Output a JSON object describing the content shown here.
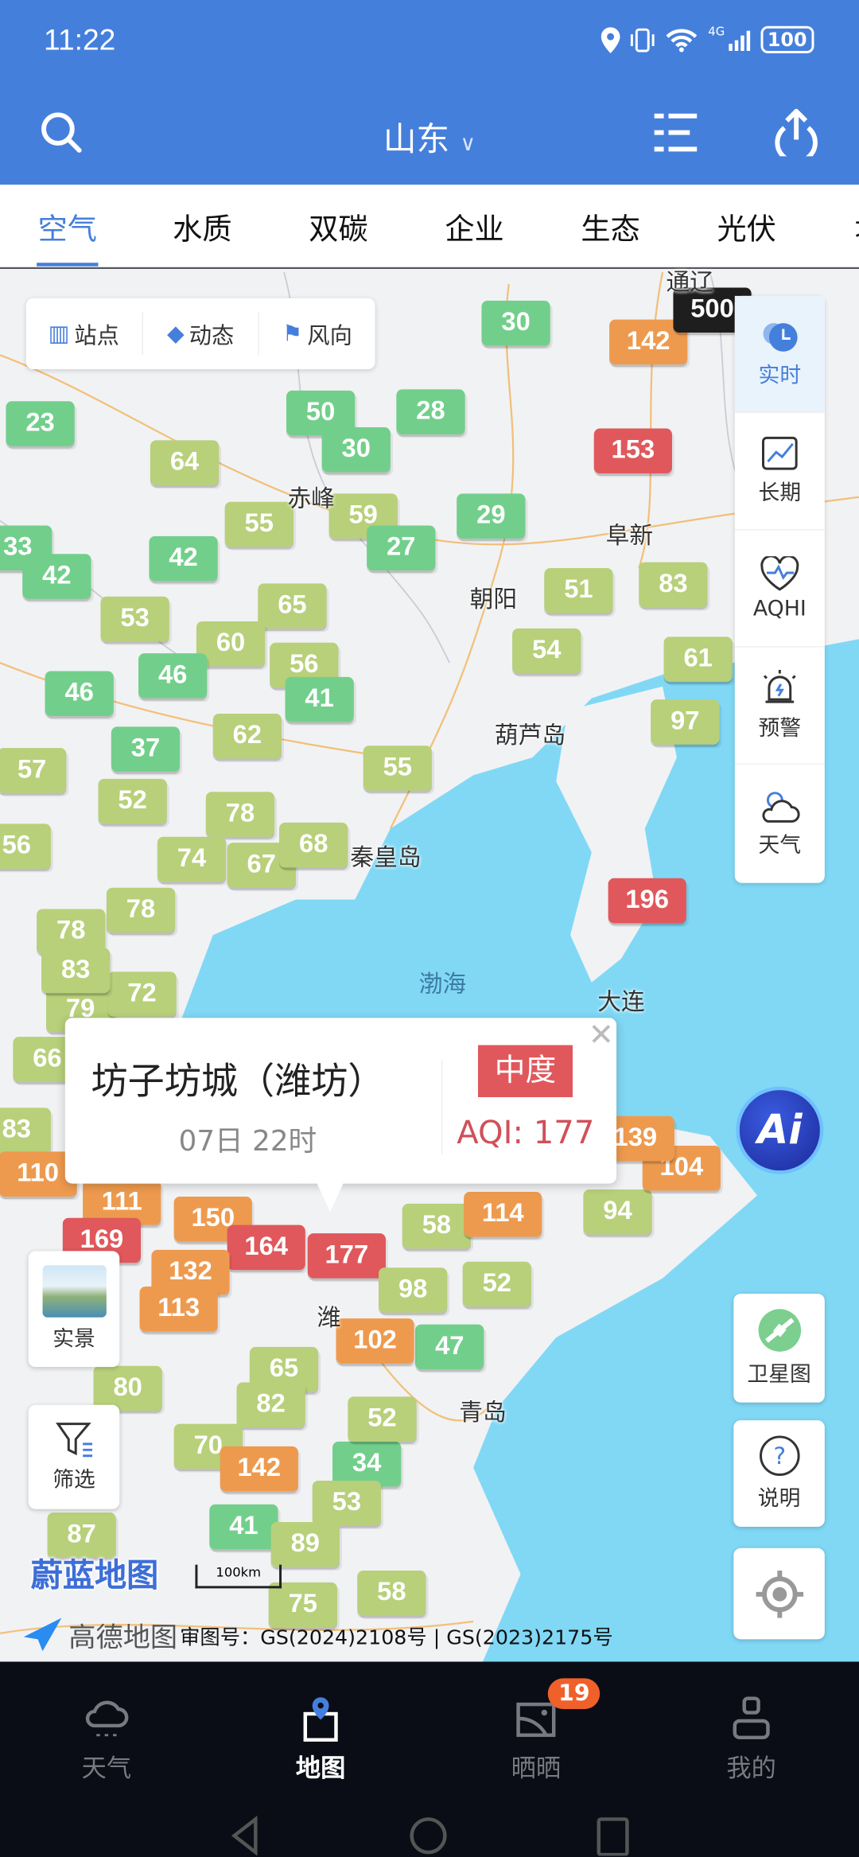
{
  "status_bar": {
    "time": "11:22",
    "battery": "100",
    "network": "4G"
  },
  "header": {
    "title": "山东",
    "search_icon": "search-icon",
    "list_icon": "list-icon",
    "share_icon": "share-icon"
  },
  "tabs": [
    "空气",
    "水质",
    "双碳",
    "企业",
    "生态",
    "光伏",
    "地"
  ],
  "active_tab": "空气",
  "map_toolbar": {
    "station": "站点",
    "dynamic": "动态",
    "wind": "风向"
  },
  "right_panel": [
    "实时",
    "长期",
    "AQHI",
    "预警",
    "天气"
  ],
  "buttons": {
    "realview": "实景",
    "filter": "筛选",
    "satellite": "卫星图",
    "explain": "说明",
    "ai": "Ai"
  },
  "popup": {
    "station": "坊子坊城（潍坊）",
    "time": "07日 22时",
    "level": "中度",
    "aqi": "AQI: 177"
  },
  "cities": [
    "通辽",
    "赤峰",
    "阜新",
    "朝阳",
    "葫芦岛",
    "秦皇岛",
    "渤海",
    "大连",
    "潍",
    "青岛"
  ],
  "map_logo": "蔚蓝地图",
  "scale": "100km",
  "attribution": {
    "provider": "高德地图",
    "license": "审图号：GS(2024)2108号 | GS(2023)2175号"
  },
  "colors": {
    "good": "#72cf8b",
    "moderate": "#b8d07a",
    "light": "#ee9a4e",
    "medium": "#e0585c",
    "severe": "#1e1e1e",
    "accent": "#457fdc"
  },
  "markers": [
    {
      "v": "30",
      "l": "good"
    },
    {
      "v": "142",
      "l": "light"
    },
    {
      "v": "500",
      "l": "severe"
    },
    {
      "v": "23",
      "l": "good"
    },
    {
      "v": "50",
      "l": "good"
    },
    {
      "v": "28",
      "l": "good"
    },
    {
      "v": "30",
      "l": "good"
    },
    {
      "v": "153",
      "l": "medium"
    },
    {
      "v": "64",
      "l": "moderate"
    },
    {
      "v": "55",
      "l": "moderate"
    },
    {
      "v": "59",
      "l": "moderate"
    },
    {
      "v": "29",
      "l": "good"
    },
    {
      "v": "42",
      "l": "good"
    },
    {
      "v": "27",
      "l": "good"
    },
    {
      "v": "33",
      "l": "good"
    },
    {
      "v": "42",
      "l": "good"
    },
    {
      "v": "51",
      "l": "moderate"
    },
    {
      "v": "83",
      "l": "moderate"
    },
    {
      "v": "53",
      "l": "moderate"
    },
    {
      "v": "65",
      "l": "moderate"
    },
    {
      "v": "60",
      "l": "moderate"
    },
    {
      "v": "56",
      "l": "moderate"
    },
    {
      "v": "54",
      "l": "moderate"
    },
    {
      "v": "61",
      "l": "moderate"
    },
    {
      "v": "46",
      "l": "good"
    },
    {
      "v": "46",
      "l": "good"
    },
    {
      "v": "41",
      "l": "good"
    },
    {
      "v": "37",
      "l": "good"
    },
    {
      "v": "62",
      "l": "moderate"
    },
    {
      "v": "97",
      "l": "moderate"
    },
    {
      "v": "57",
      "l": "moderate"
    },
    {
      "v": "55",
      "l": "moderate"
    },
    {
      "v": "52",
      "l": "moderate"
    },
    {
      "v": "78",
      "l": "moderate"
    },
    {
      "v": "56",
      "l": "moderate"
    },
    {
      "v": "74",
      "l": "moderate"
    },
    {
      "v": "67",
      "l": "moderate"
    },
    {
      "v": "68",
      "l": "moderate"
    },
    {
      "v": "78",
      "l": "moderate"
    },
    {
      "v": "78",
      "l": "moderate"
    },
    {
      "v": "83",
      "l": "moderate"
    },
    {
      "v": "196",
      "l": "medium"
    },
    {
      "v": "110",
      "l": "light"
    },
    {
      "v": "111",
      "l": "light"
    },
    {
      "v": "150",
      "l": "light"
    },
    {
      "v": "169",
      "l": "medium"
    },
    {
      "v": "164",
      "l": "medium"
    },
    {
      "v": "177",
      "l": "medium"
    },
    {
      "v": "58",
      "l": "moderate"
    },
    {
      "v": "114",
      "l": "light"
    },
    {
      "v": "94",
      "l": "moderate"
    },
    {
      "v": "104",
      "l": "light"
    },
    {
      "v": "139",
      "l": "light"
    },
    {
      "v": "132",
      "l": "light"
    },
    {
      "v": "113",
      "l": "light"
    },
    {
      "v": "98",
      "l": "moderate"
    },
    {
      "v": "102",
      "l": "light"
    },
    {
      "v": "65",
      "l": "moderate"
    },
    {
      "v": "80",
      "l": "moderate"
    },
    {
      "v": "82",
      "l": "moderate"
    },
    {
      "v": "52",
      "l": "moderate"
    },
    {
      "v": "70",
      "l": "moderate"
    },
    {
      "v": "142",
      "l": "light"
    },
    {
      "v": "53",
      "l": "moderate"
    },
    {
      "v": "87",
      "l": "moderate"
    },
    {
      "v": "89",
      "l": "moderate"
    },
    {
      "v": "58",
      "l": "moderate"
    },
    {
      "v": "75",
      "l": "moderate"
    },
    {
      "v": "79",
      "l": "moderate"
    },
    {
      "v": "72",
      "l": "moderate"
    },
    {
      "v": "66",
      "l": "moderate"
    },
    {
      "v": "83",
      "l": "moderate"
    },
    {
      "v": "52",
      "l": "moderate"
    },
    {
      "v": "47",
      "l": "good"
    },
    {
      "v": "34",
      "l": "good"
    },
    {
      "v": "41",
      "l": "good"
    }
  ],
  "bottom_nav": [
    {
      "label": "天气"
    },
    {
      "label": "地图"
    },
    {
      "label": "晒晒",
      "badge": "19"
    },
    {
      "label": "我的"
    }
  ]
}
